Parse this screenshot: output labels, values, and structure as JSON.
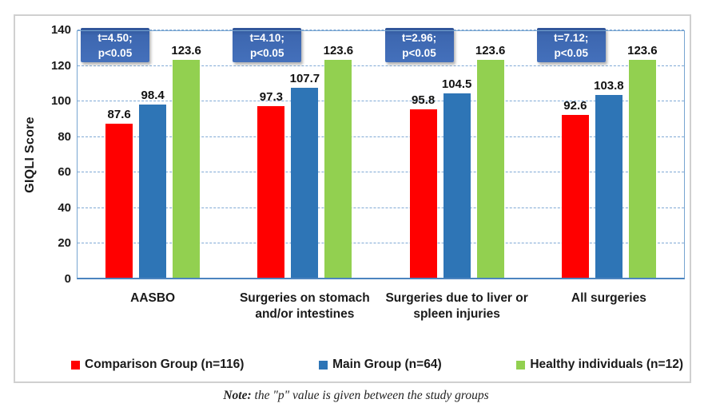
{
  "figure": {
    "note_prefix": "Note:",
    "note_text": " the \"p\" value is given between the study groups"
  },
  "chart_data": {
    "type": "bar",
    "title": "",
    "ylabel": "GIQLI Score",
    "ylim": [
      0,
      140
    ],
    "yticks": [
      0,
      20,
      40,
      60,
      80,
      100,
      120,
      140
    ],
    "grid": "horizontal-dashed",
    "legend_position": "bottom",
    "categories": [
      "AASBO",
      "Surgeries on stomach\nand/or intestines",
      "Surgeries due to liver or\nspleen injuries",
      "All surgeries"
    ],
    "series": [
      {
        "name": "Comparison Group (n=116)",
        "color": "#FF0000",
        "values": [
          87.6,
          97.3,
          95.8,
          92.6
        ]
      },
      {
        "name": "Main Group (n=64)",
        "color": "#2E75B6",
        "values": [
          98.4,
          107.7,
          104.5,
          103.8
        ]
      },
      {
        "name": "Healthy individuals (n=12)",
        "color": "#92D050",
        "values": [
          123.6,
          123.6,
          123.6,
          123.6
        ]
      }
    ],
    "annotations": [
      {
        "line1": "t=4.50;",
        "line2": "p<0.05"
      },
      {
        "line1": "t=4.10;",
        "line2": "p<0.05"
      },
      {
        "line1": "t=2.96;",
        "line2": "p<0.05"
      },
      {
        "line1": "t=7.12;",
        "line2": "p<0.05"
      }
    ],
    "colors": {
      "grid": "#7FA9D6",
      "plot_border": "#77A5D1",
      "axis_line": "#4C84BF",
      "annotation_bg": "#3D67B0",
      "annotation_text": "#FFFFFF",
      "frame_border": "#D0D0D0"
    }
  }
}
